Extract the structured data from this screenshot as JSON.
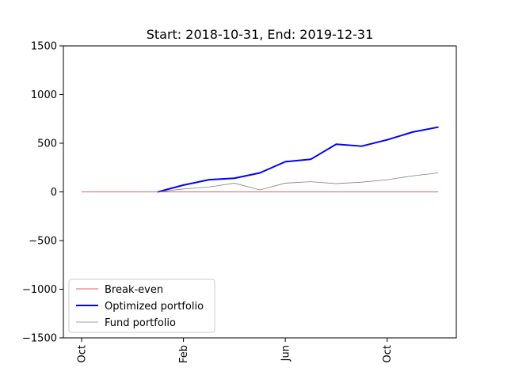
{
  "chart_data": {
    "type": "line",
    "title": "Start: 2018-10-31, End: 2019-12-31",
    "xlabel": "",
    "ylabel": "",
    "x_months_start": "2018-10",
    "xlim": [
      0,
      15
    ],
    "ylim": [
      -1500,
      1500
    ],
    "yticks": [
      {
        "value": 1500,
        "label": "1500"
      },
      {
        "value": 1000,
        "label": "1000"
      },
      {
        "value": 500,
        "label": "500"
      },
      {
        "value": 0,
        "label": "0"
      },
      {
        "value": -500,
        "label": "−500"
      },
      {
        "value": -1000,
        "label": "−1000"
      },
      {
        "value": -1500,
        "label": "−1500"
      }
    ],
    "xticks": [
      {
        "value": 0,
        "label": "Oct"
      },
      {
        "value": 4,
        "label": "Feb"
      },
      {
        "value": 8,
        "label": "Jun"
      },
      {
        "value": 12,
        "label": "Oct"
      }
    ],
    "grid": false,
    "legend_position": "lower-left",
    "series": [
      {
        "name": "Break-even",
        "color": "#d62728",
        "style": "thin",
        "x": [
          0,
          14
        ],
        "values": [
          0,
          0
        ]
      },
      {
        "name": "Optimized portfolio",
        "color": "#0000ff",
        "style": "thick",
        "x": [
          3,
          4,
          5,
          6,
          7,
          8,
          9,
          10,
          11,
          12,
          13,
          14
        ],
        "values": [
          0,
          70,
          125,
          140,
          195,
          310,
          335,
          490,
          470,
          535,
          615,
          665
        ]
      },
      {
        "name": "Fund portfolio",
        "color": "#808080",
        "style": "thin",
        "x": [
          3,
          4,
          5,
          6,
          7,
          8,
          9,
          10,
          11,
          12,
          13,
          14
        ],
        "values": [
          0,
          30,
          50,
          90,
          20,
          90,
          105,
          85,
          100,
          125,
          165,
          195
        ]
      }
    ]
  }
}
